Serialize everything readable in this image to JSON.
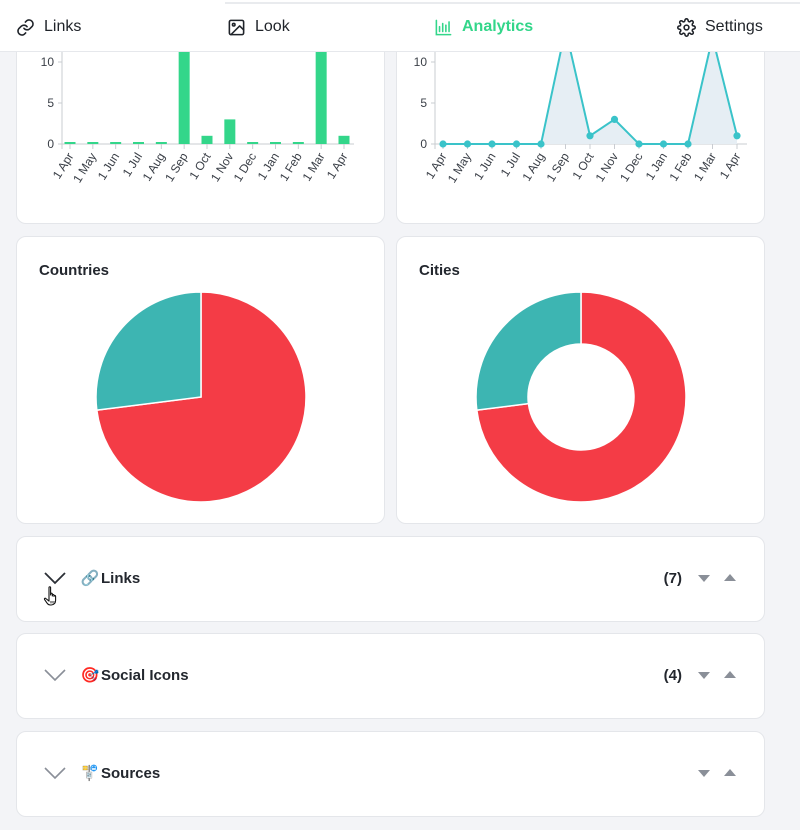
{
  "nav": {
    "tabs": [
      {
        "label": "Links",
        "icon": "link-icon"
      },
      {
        "label": "Look",
        "icon": "image-icon"
      },
      {
        "label": "Analytics",
        "icon": "bar-chart-icon",
        "active": true
      },
      {
        "label": "Settings",
        "icon": "gear-icon"
      }
    ],
    "active_color": "#33d68a"
  },
  "chart_data": [
    {
      "type": "bar",
      "categories": [
        "1 Apr",
        "1 May",
        "1 Jun",
        "1 Jul",
        "1 Aug",
        "1 Sep",
        "1 Oct",
        "1 Nov",
        "1 Dec",
        "1 Jan",
        "1 Feb",
        "1 Mar",
        "1 Apr"
      ],
      "values": [
        0,
        0,
        0,
        0,
        0,
        14,
        1,
        3,
        0,
        0,
        0,
        13,
        1
      ],
      "yticks": [
        0,
        5,
        10
      ],
      "ylim": [
        0,
        11.5
      ],
      "color": "#33d68a"
    },
    {
      "type": "area",
      "categories": [
        "1 Apr",
        "1 May",
        "1 Jun",
        "1 Jul",
        "1 Aug",
        "1 Sep",
        "1 Oct",
        "1 Nov",
        "1 Dec",
        "1 Jan",
        "1 Feb",
        "1 Mar",
        "1 Apr"
      ],
      "values": [
        0,
        0,
        0,
        0,
        0,
        14,
        1,
        3,
        0,
        0,
        0,
        13,
        1
      ],
      "yticks": [
        0,
        5,
        10
      ],
      "ylim": [
        0,
        11.5
      ],
      "color": "#3ac3c9",
      "fill": "#e6eef4"
    },
    {
      "type": "pie",
      "title": "Countries",
      "slices": [
        {
          "value": 73,
          "color": "#f43c46"
        },
        {
          "value": 27,
          "color": "#3db5b2"
        }
      ]
    },
    {
      "type": "pie",
      "title": "Cities",
      "donut": true,
      "slices": [
        {
          "value": 73,
          "color": "#f43c46"
        },
        {
          "value": 27,
          "color": "#3db5b2"
        }
      ]
    }
  ],
  "accordions": [
    {
      "emoji": "🔗",
      "label": "Links",
      "count": "(7)"
    },
    {
      "emoji": "🎯",
      "label": "Social Icons",
      "count": "(4)"
    },
    {
      "emoji": "🚏",
      "label": "Sources",
      "count": ""
    }
  ]
}
